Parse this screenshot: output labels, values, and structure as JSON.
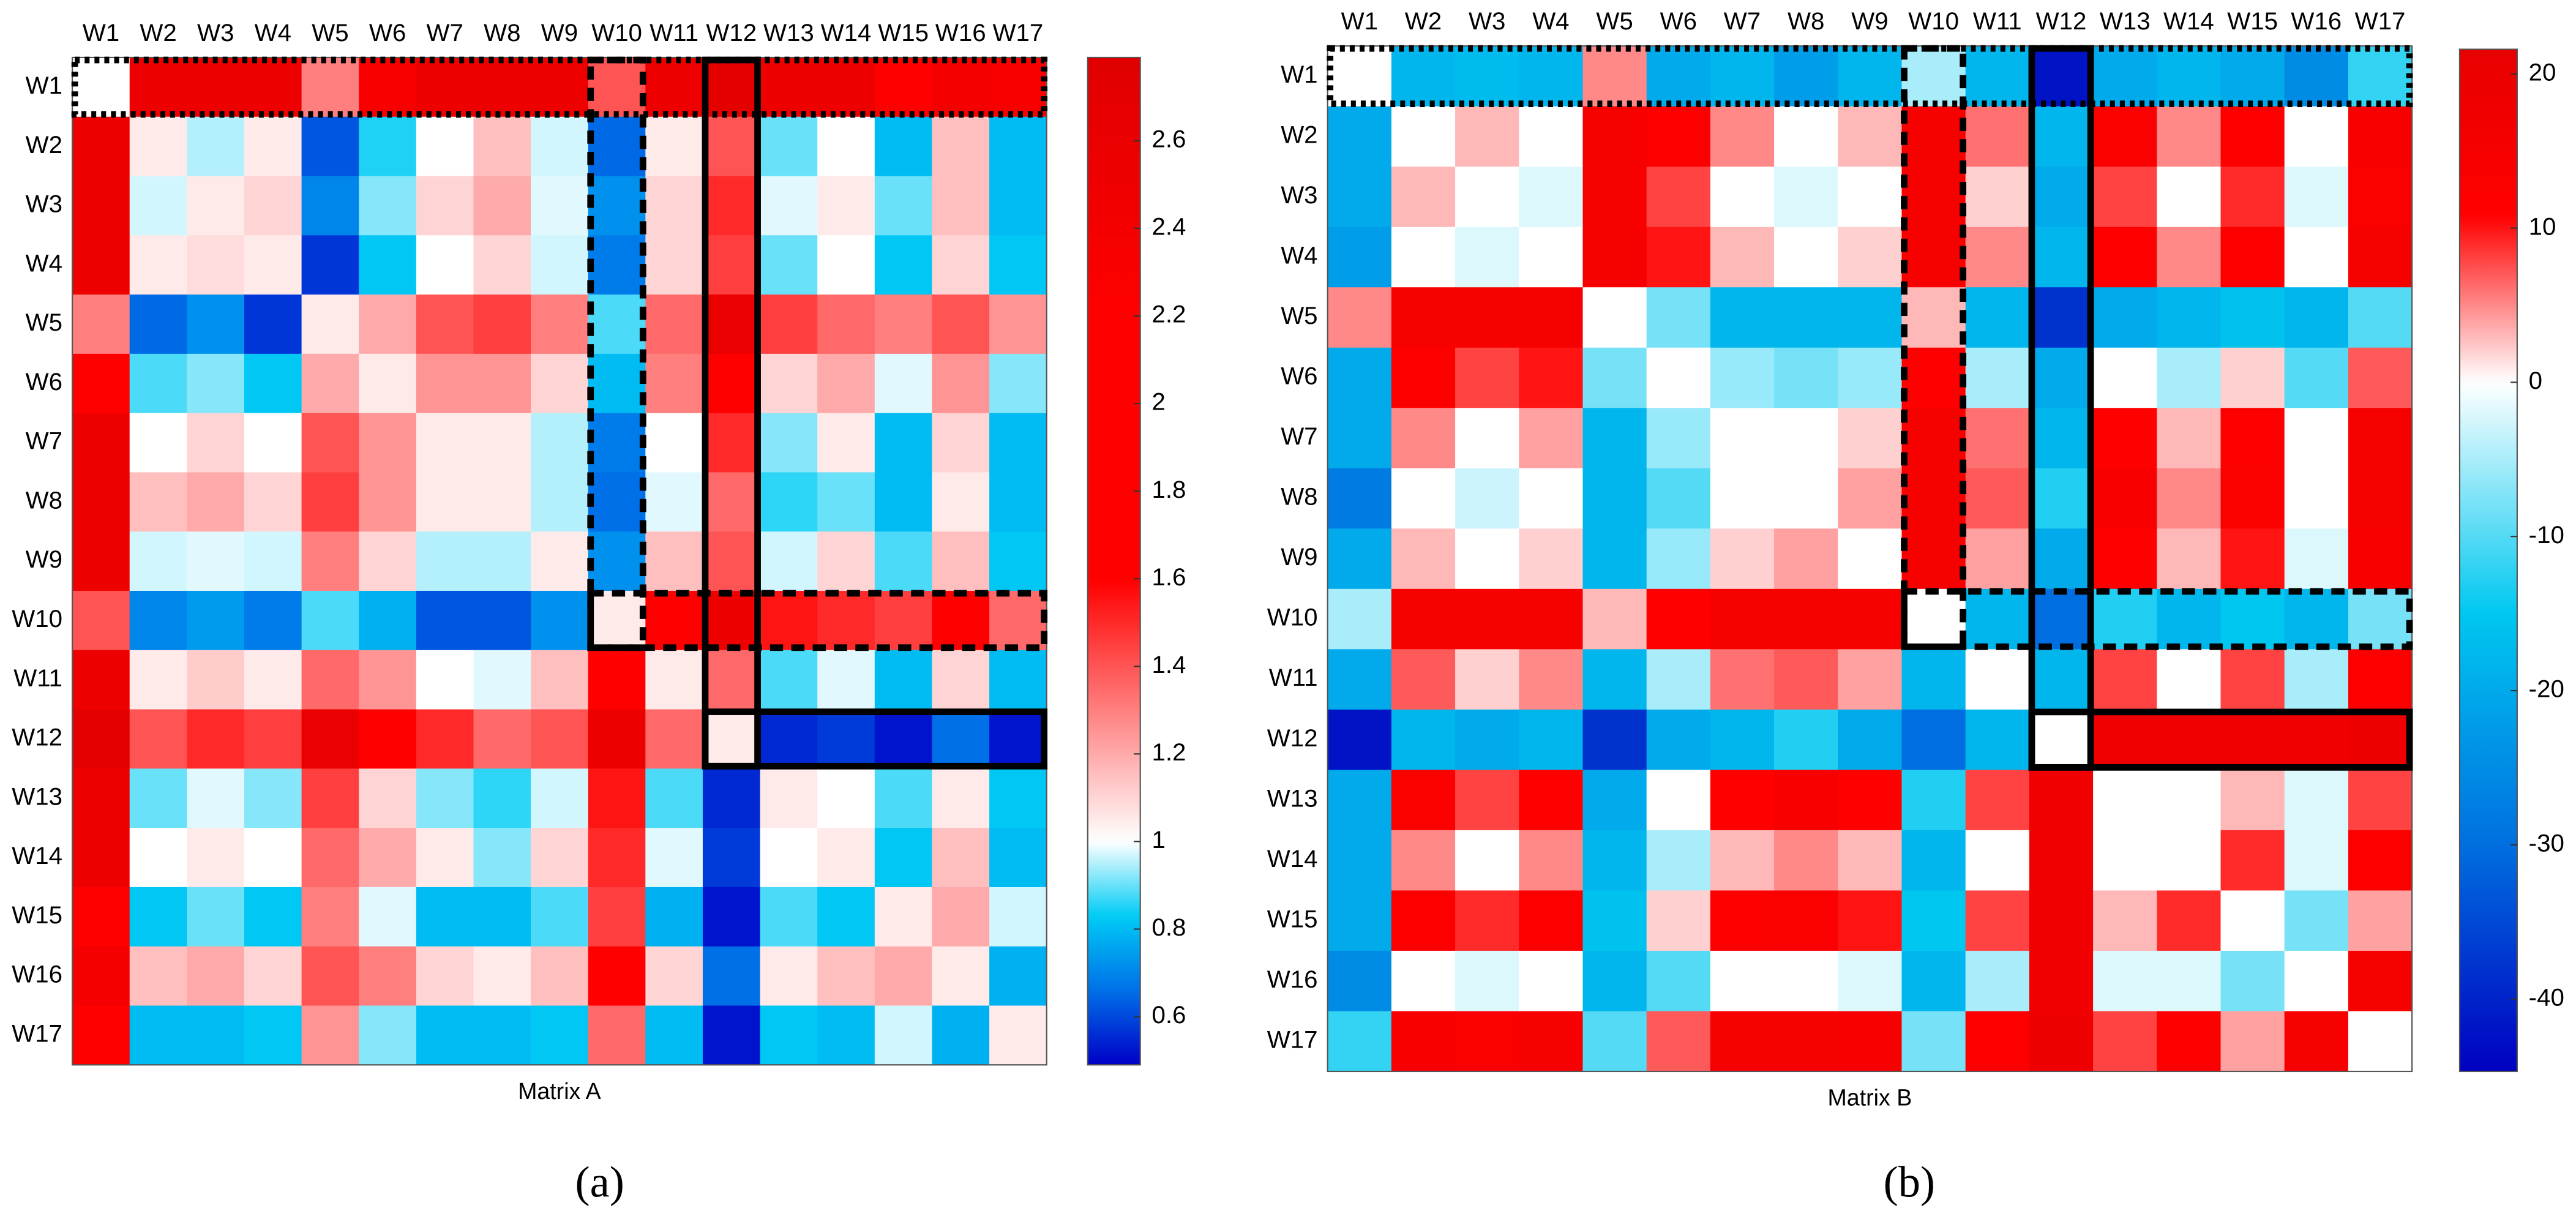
{
  "chart_data": [
    {
      "type": "heatmap",
      "xlabel": "Matrix A",
      "panel_label": "(a)",
      "x_categories": [
        "W1",
        "W2",
        "W3",
        "W4",
        "W5",
        "W6",
        "W7",
        "W8",
        "W9",
        "W10",
        "W11",
        "W12",
        "W13",
        "W14",
        "W15",
        "W16",
        "W17"
      ],
      "y_categories": [
        "W1",
        "W2",
        "W3",
        "W4",
        "W5",
        "W6",
        "W7",
        "W8",
        "W9",
        "W10",
        "W11",
        "W12",
        "W13",
        "W14",
        "W15",
        "W16",
        "W17"
      ],
      "values": [
        [
          1.0,
          2.5,
          2.5,
          2.5,
          1.3,
          2.3,
          2.5,
          2.5,
          2.5,
          1.4,
          2.5,
          2.7,
          2.5,
          2.5,
          2.2,
          2.4,
          2.3
        ],
        [
          2.5,
          1.05,
          0.95,
          1.05,
          0.62,
          0.85,
          1.0,
          1.15,
          0.97,
          0.65,
          1.05,
          1.4,
          0.9,
          1.0,
          0.8,
          1.15,
          0.8
        ],
        [
          2.5,
          0.97,
          1.05,
          1.1,
          0.7,
          0.92,
          1.1,
          1.2,
          0.98,
          0.72,
          1.1,
          1.5,
          0.98,
          1.05,
          0.9,
          1.15,
          0.8
        ],
        [
          2.5,
          1.05,
          1.08,
          1.05,
          0.57,
          0.82,
          1.0,
          1.1,
          0.97,
          0.68,
          1.1,
          1.45,
          0.9,
          1.0,
          0.82,
          1.1,
          0.82
        ],
        [
          1.3,
          0.65,
          0.72,
          0.57,
          1.05,
          1.2,
          1.4,
          1.45,
          1.3,
          0.88,
          1.35,
          2.6,
          1.45,
          1.35,
          1.3,
          1.4,
          1.25
        ],
        [
          2.2,
          0.88,
          0.92,
          0.82,
          1.2,
          1.05,
          1.25,
          1.25,
          1.1,
          0.8,
          1.3,
          1.8,
          1.1,
          1.2,
          0.98,
          1.25,
          0.92
        ],
        [
          2.5,
          1.0,
          1.1,
          1.0,
          1.4,
          1.25,
          1.05,
          1.05,
          0.95,
          0.68,
          1.0,
          1.5,
          0.92,
          1.05,
          0.8,
          1.1,
          0.8
        ],
        [
          2.5,
          1.15,
          1.2,
          1.1,
          1.45,
          1.25,
          1.05,
          1.05,
          0.95,
          0.66,
          0.98,
          1.35,
          0.86,
          0.9,
          0.8,
          1.05,
          0.8
        ],
        [
          2.5,
          0.97,
          0.98,
          0.97,
          1.3,
          1.1,
          0.95,
          0.95,
          1.05,
          0.72,
          1.15,
          1.4,
          0.97,
          1.1,
          0.88,
          1.15,
          0.82
        ],
        [
          1.4,
          0.7,
          0.74,
          0.68,
          0.88,
          0.78,
          0.62,
          0.62,
          0.72,
          1.05,
          1.6,
          2.5,
          1.55,
          1.5,
          1.45,
          1.7,
          1.35
        ],
        [
          2.5,
          1.05,
          1.12,
          1.05,
          1.35,
          1.25,
          1.0,
          0.98,
          1.15,
          1.6,
          1.05,
          1.35,
          0.88,
          0.98,
          0.8,
          1.1,
          0.8
        ],
        [
          2.7,
          1.4,
          1.5,
          1.45,
          2.6,
          1.8,
          1.5,
          1.35,
          1.4,
          2.5,
          1.35,
          1.05,
          0.55,
          0.58,
          0.52,
          0.66,
          0.52
        ],
        [
          2.5,
          0.9,
          0.98,
          0.92,
          1.45,
          1.1,
          0.92,
          0.86,
          0.97,
          1.55,
          0.88,
          0.55,
          1.05,
          1.0,
          0.88,
          1.05,
          0.82
        ],
        [
          2.5,
          1.0,
          1.05,
          1.0,
          1.35,
          1.2,
          1.05,
          0.92,
          1.1,
          1.5,
          0.98,
          0.58,
          1.0,
          1.05,
          0.82,
          1.15,
          0.8
        ],
        [
          2.2,
          0.82,
          0.9,
          0.82,
          1.3,
          0.98,
          0.8,
          0.8,
          0.88,
          1.45,
          0.78,
          0.52,
          0.88,
          0.82,
          1.05,
          1.2,
          0.97
        ],
        [
          2.4,
          1.15,
          1.2,
          1.1,
          1.4,
          1.3,
          1.1,
          1.05,
          1.15,
          1.7,
          1.1,
          0.66,
          1.05,
          1.15,
          1.2,
          1.05,
          0.78
        ],
        [
          2.2,
          0.8,
          0.8,
          0.82,
          1.25,
          0.92,
          0.8,
          0.8,
          0.82,
          1.35,
          0.8,
          0.52,
          0.82,
          0.8,
          0.97,
          0.78,
          1.05
        ]
      ],
      "zlim": [
        0.49,
        2.79
      ],
      "zticks": [
        0.6,
        0.8,
        1,
        1.2,
        1.4,
        1.6,
        1.8,
        2,
        2.2,
        2.4,
        2.6
      ],
      "cmap_center": 1,
      "cmap_below": [
        "#0000c8",
        "#0070e8",
        "#00ccf5",
        "#ffffff"
      ],
      "cmap_above": [
        "#ffffff",
        "#ff0000",
        "#ff0000",
        "#e00000"
      ]
    },
    {
      "type": "heatmap",
      "xlabel": "Matrix B",
      "panel_label": "(b)",
      "x_categories": [
        "W1",
        "W2",
        "W3",
        "W4",
        "W5",
        "W6",
        "W7",
        "W8",
        "W9",
        "W10",
        "W11",
        "W12",
        "W13",
        "W14",
        "W15",
        "W16",
        "W17"
      ],
      "y_categories": [
        "W1",
        "W2",
        "W3",
        "W4",
        "W5",
        "W6",
        "W7",
        "W8",
        "W9",
        "W10",
        "W11",
        "W12",
        "W13",
        "W14",
        "W15",
        "W16",
        "W17"
      ],
      "values": [
        [
          0,
          -18,
          -17,
          -18,
          5,
          -20,
          -18,
          -22,
          -18,
          -5,
          -18,
          -42,
          -20,
          -18,
          -20,
          -25,
          -12
        ],
        [
          -20,
          0,
          3,
          0,
          15,
          12,
          5,
          0,
          3,
          15,
          6,
          -18,
          13,
          5,
          12,
          0,
          14
        ],
        [
          -20,
          3,
          0,
          -2,
          15,
          8,
          0,
          -2,
          0,
          15,
          2,
          -20,
          8,
          0,
          9,
          -2,
          13
        ],
        [
          -22,
          0,
          -2,
          0,
          15,
          10,
          3,
          0,
          2,
          15,
          5,
          -18,
          11,
          5,
          12,
          0,
          15
        ],
        [
          5,
          15,
          15,
          15,
          0,
          -8,
          -18,
          -18,
          -18,
          3,
          -18,
          -38,
          -20,
          -18,
          -16,
          -18,
          -10
        ],
        [
          -20,
          12,
          8,
          10,
          -8,
          0,
          -6,
          -8,
          -6,
          11,
          -5,
          -20,
          0,
          -5,
          2,
          -10,
          7
        ],
        [
          -20,
          5,
          0,
          4,
          -18,
          -6,
          0,
          0,
          2,
          15,
          6,
          -18,
          11,
          3,
          12,
          0,
          15
        ],
        [
          -28,
          0,
          -3,
          0,
          -18,
          -10,
          0,
          0,
          4,
          15,
          7,
          -13,
          14,
          5,
          13,
          0,
          15
        ],
        [
          -20,
          3,
          0,
          2,
          -18,
          -6,
          2,
          4,
          0,
          15,
          4,
          -20,
          11,
          3,
          10,
          -2,
          14
        ],
        [
          -5,
          15,
          15,
          15,
          3,
          11,
          15,
          15,
          15,
          0,
          -18,
          -30,
          -13,
          -18,
          -15,
          -18,
          -8
        ],
        [
          -20,
          7,
          2,
          5,
          -18,
          -5,
          6,
          7,
          4,
          -18,
          0,
          -18,
          8,
          0,
          8,
          -5,
          12
        ],
        [
          -42,
          -18,
          -20,
          -18,
          -38,
          -20,
          -18,
          -13,
          -20,
          -30,
          -18,
          0,
          18,
          18,
          18,
          18,
          19
        ],
        [
          -20,
          13,
          8,
          11,
          -20,
          0,
          11,
          14,
          11,
          -13,
          8,
          18,
          0,
          0,
          3,
          -2,
          8
        ],
        [
          -20,
          5,
          0,
          5,
          -18,
          -5,
          3,
          5,
          3,
          -18,
          0,
          18,
          0,
          0,
          9,
          -2,
          12
        ],
        [
          -20,
          12,
          9,
          12,
          -16,
          2,
          12,
          13,
          10,
          -15,
          8,
          18,
          3,
          9,
          0,
          -8,
          4
        ],
        [
          -25,
          0,
          -2,
          0,
          -18,
          -10,
          0,
          0,
          -2,
          -18,
          -5,
          18,
          -2,
          -2,
          -8,
          0,
          15
        ],
        [
          -12,
          14,
          13,
          15,
          -10,
          7,
          15,
          15,
          14,
          -8,
          12,
          19,
          8,
          12,
          4,
          15,
          0
        ]
      ],
      "zlim": [
        -44.7,
        21.6
      ],
      "zticks": [
        -40,
        -30,
        -20,
        -10,
        0,
        10,
        20
      ],
      "cmap_center": 0,
      "cmap_below": [
        "#0000c0",
        "#0070e0",
        "#00c8f0",
        "#ffffff"
      ],
      "cmap_above": [
        "#ffffff",
        "#ff0000",
        "#e80000"
      ]
    }
  ]
}
